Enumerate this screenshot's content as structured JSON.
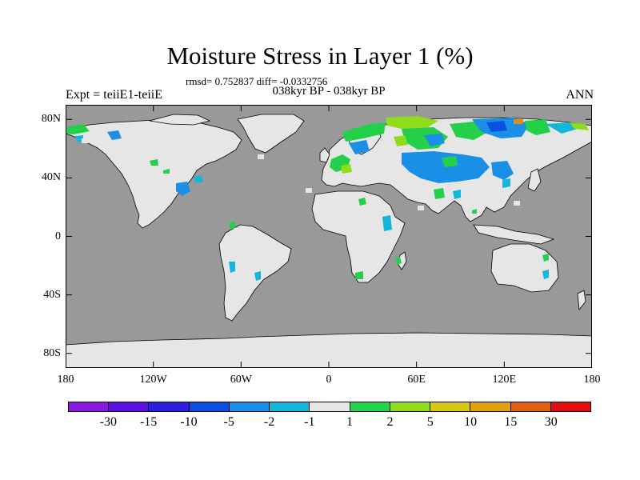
{
  "title": "Moisture Stress in Layer 1 (%)",
  "stats": "rmsd= 0.752837 diff= -0.0332756",
  "subtitle": "038kyr BP - 038kyr BP",
  "left_label": "Expt = teiiE1-teiiE",
  "right_label": "ANN",
  "colors": {
    "ocean": "#999999",
    "land_neutral": "#e6e6e6",
    "green": "#24cf4a",
    "blue": "#1a8fe6",
    "cyan": "#12b6d8",
    "yellowgreen": "#8fdc1c",
    "orange": "#e08f10"
  },
  "y_ticks": [
    {
      "label": "80N",
      "lat": 80
    },
    {
      "label": "40N",
      "lat": 40
    },
    {
      "label": "0",
      "lat": 0
    },
    {
      "label": "40S",
      "lat": -40
    },
    {
      "label": "80S",
      "lat": -80
    }
  ],
  "x_ticks": [
    {
      "label": "180",
      "lon": -180
    },
    {
      "label": "120W",
      "lon": -120
    },
    {
      "label": "60W",
      "lon": -60
    },
    {
      "label": "0",
      "lon": 0
    },
    {
      "label": "60E",
      "lon": 60
    },
    {
      "label": "120E",
      "lon": 120
    },
    {
      "label": "180",
      "lon": 180
    }
  ],
  "colorbar": {
    "colors": [
      "#8a17e0",
      "#5b0fe0",
      "#2b1ee0",
      "#0a4fe0",
      "#1a8fe6",
      "#12b6d8",
      "#e6e6e6",
      "#20d44e",
      "#8fdc1c",
      "#d8c812",
      "#e0a010",
      "#e06010",
      "#e00e0e"
    ],
    "labels": [
      "-30",
      "-15",
      "-10",
      "-5",
      "-2",
      "-1",
      "1",
      "2",
      "5",
      "10",
      "15",
      "30"
    ]
  }
}
